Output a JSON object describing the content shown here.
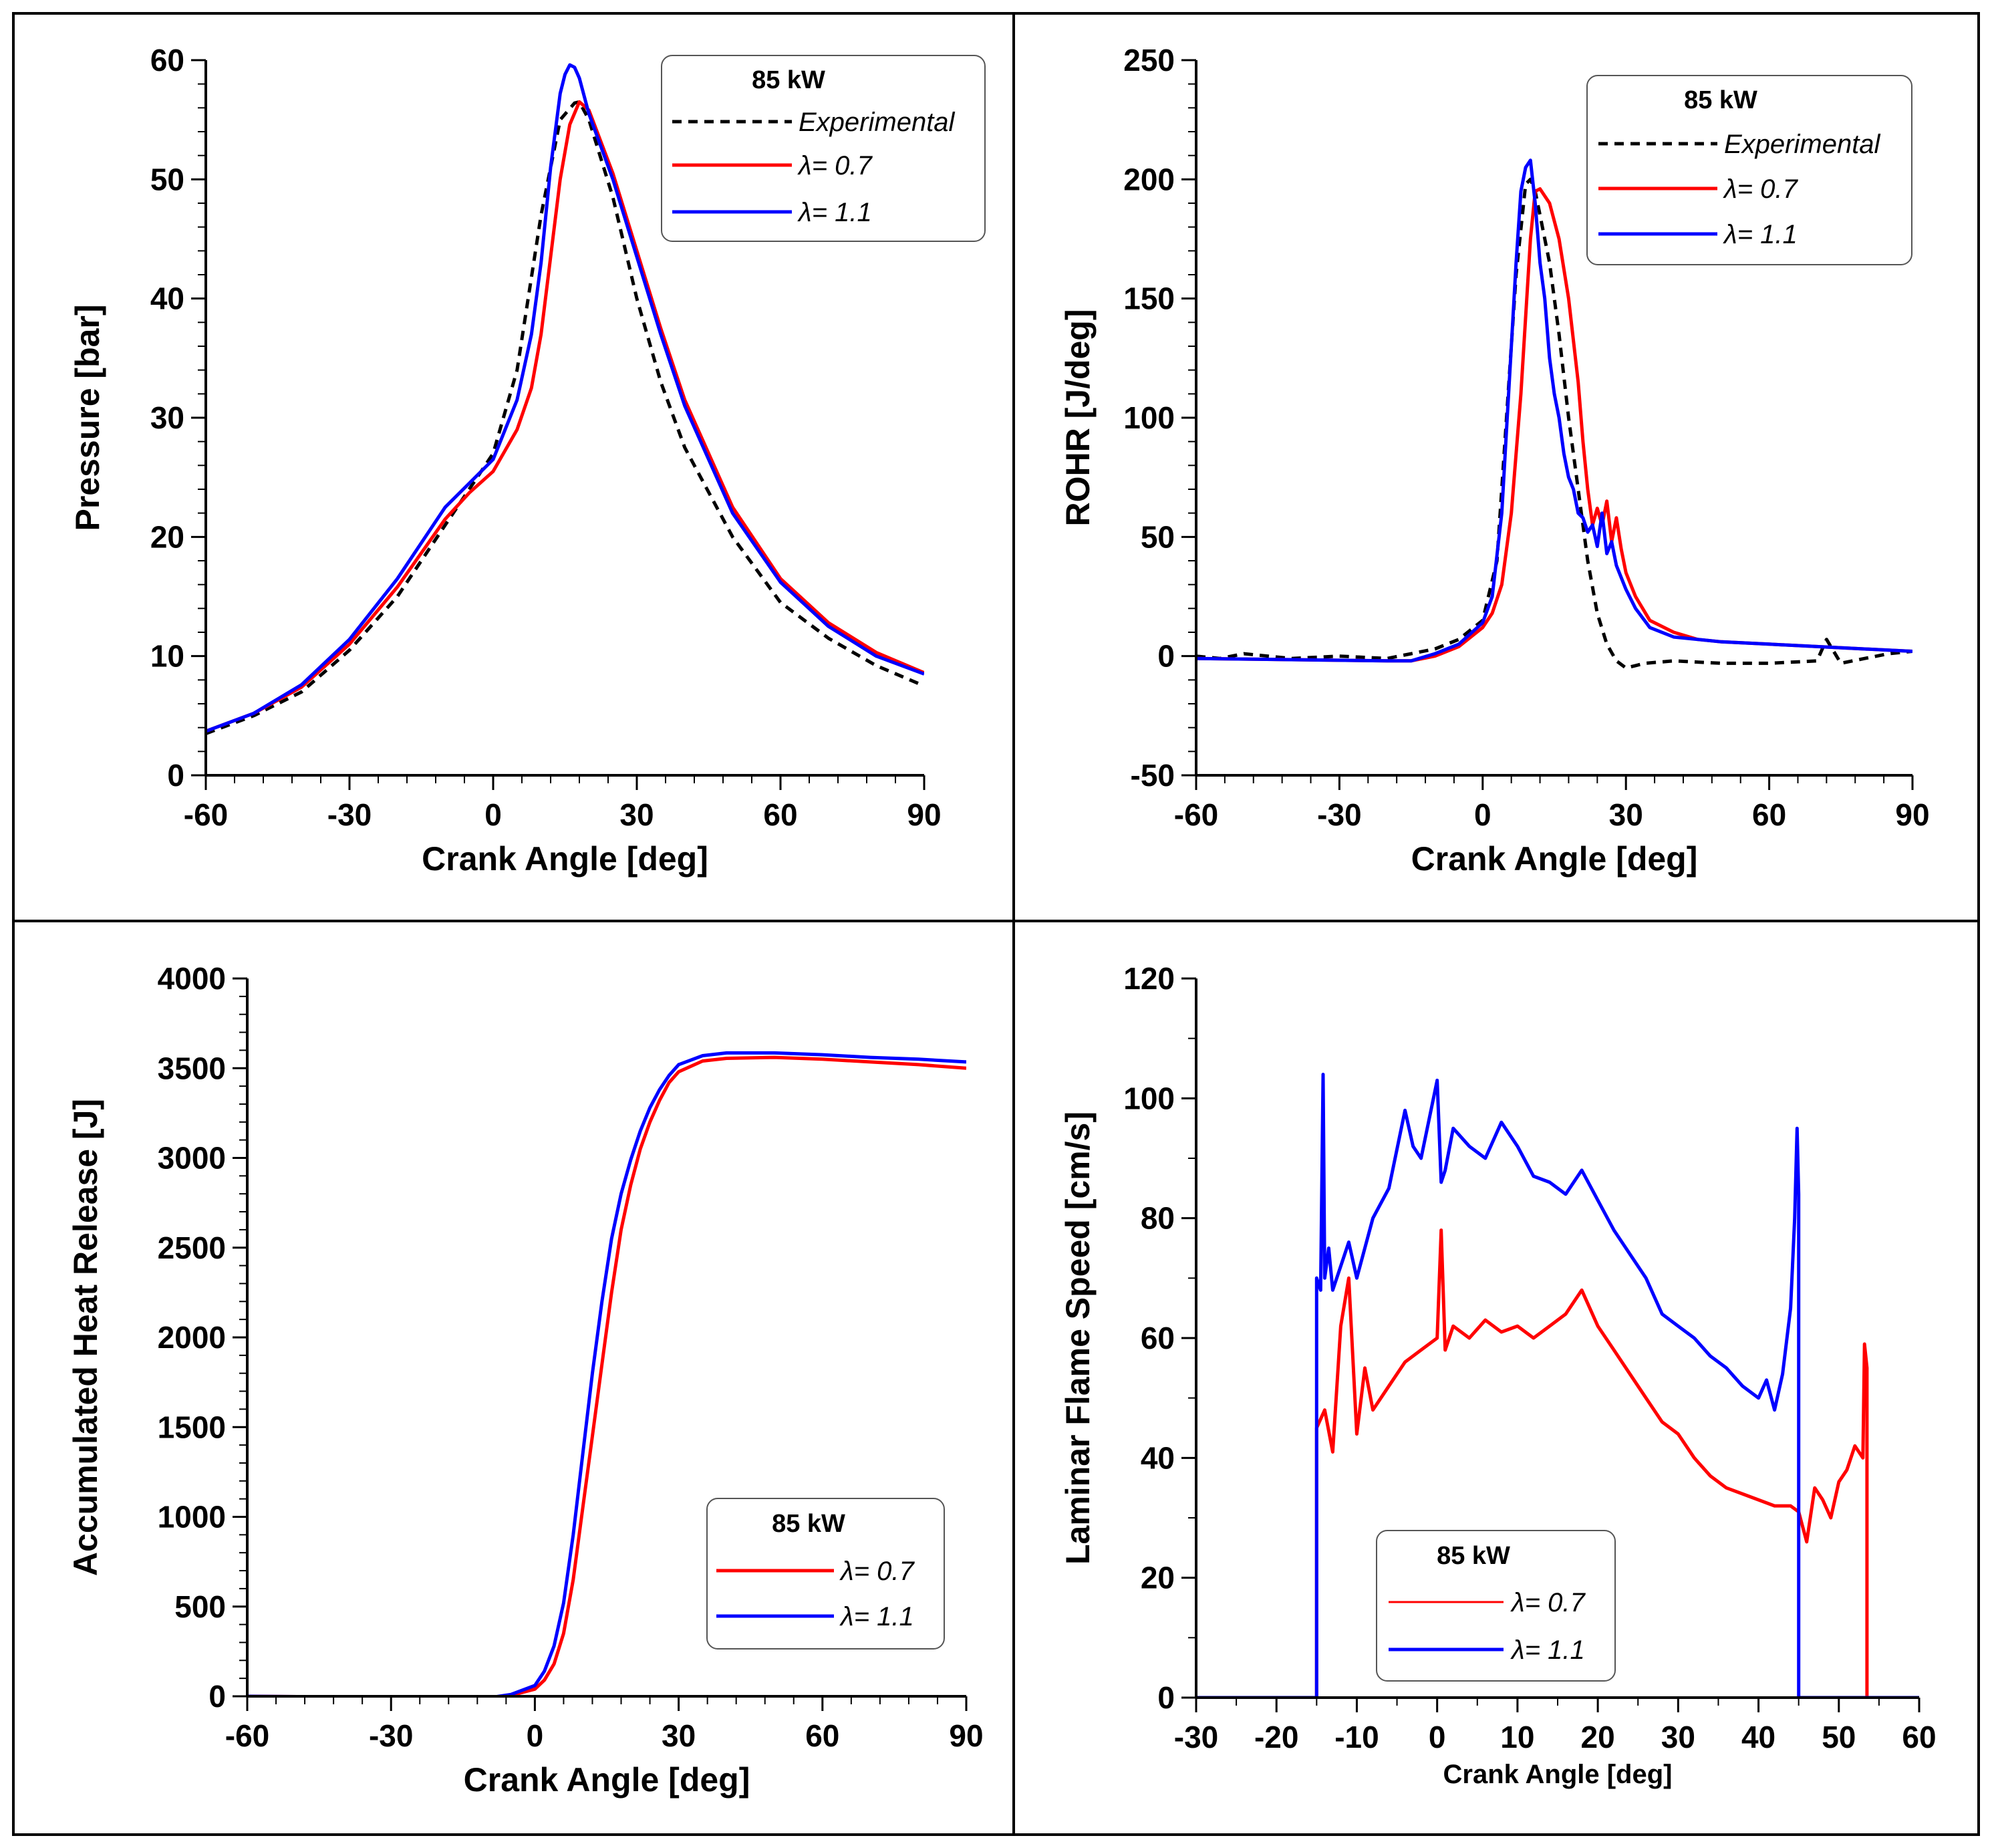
{
  "colors": {
    "experimental": "#000000",
    "lambda_07": "#ff0000",
    "lambda_11": "#0000ff"
  },
  "chart_data": [
    {
      "id": "pressure",
      "type": "line",
      "xlabel": "Crank Angle [deg]",
      "ylabel": "Pressure [bar]",
      "xlim": [
        -60,
        90
      ],
      "ylim": [
        0,
        60
      ],
      "xticks": [
        -60,
        -30,
        0,
        30,
        60,
        90
      ],
      "yticks": [
        0,
        10,
        20,
        30,
        40,
        50,
        60
      ],
      "xminor": 5,
      "yminor": 5,
      "legend": {
        "position": "top-right",
        "title": "85 kW",
        "entries": [
          {
            "key": "experimental",
            "label": "Experimental",
            "style": "dashed"
          },
          {
            "key": "lambda_07",
            "label": "λ= 0.7",
            "style": "solid"
          },
          {
            "key": "lambda_11",
            "label": "λ= 1.1",
            "style": "solid"
          }
        ]
      },
      "series": [
        {
          "key": "experimental",
          "name": "Experimental",
          "style": "dashed",
          "x": [
            -60,
            -50,
            -40,
            -30,
            -20,
            -10,
            -5,
            0,
            5,
            10,
            14,
            17,
            18,
            20,
            25,
            30,
            35,
            40,
            50,
            60,
            70,
            80,
            90
          ],
          "y": [
            3.5,
            5,
            7,
            10.5,
            15,
            21,
            24,
            27,
            34,
            47,
            55,
            56.4,
            56.5,
            55,
            48.5,
            40,
            33,
            27.5,
            20,
            14.5,
            11.5,
            9.2,
            7.5
          ]
        },
        {
          "key": "lambda_07",
          "name": "λ= 0.7",
          "x": [
            -60,
            -50,
            -40,
            -30,
            -20,
            -10,
            -5,
            0,
            5,
            8,
            10,
            12,
            14,
            16,
            18,
            20,
            25,
            30,
            35,
            40,
            50,
            60,
            70,
            80,
            90
          ],
          "y": [
            3.7,
            5.2,
            7.4,
            11,
            15.8,
            21.5,
            23.7,
            25.5,
            29,
            32.5,
            37,
            43.5,
            50,
            54.6,
            56.5,
            55.8,
            50.5,
            44,
            37.5,
            31.5,
            22.5,
            16.5,
            12.8,
            10.3,
            8.6
          ]
        },
        {
          "key": "lambda_11",
          "name": "λ= 1.1",
          "x": [
            -60,
            -50,
            -40,
            -30,
            -20,
            -10,
            -5,
            0,
            5,
            8,
            10,
            12,
            14,
            15,
            16,
            17,
            18,
            20,
            25,
            30,
            35,
            40,
            50,
            60,
            70,
            80,
            90
          ],
          "y": [
            3.7,
            5.2,
            7.6,
            11.4,
            16.5,
            22.5,
            24.5,
            26.5,
            31.5,
            37,
            43,
            51,
            57.2,
            58.8,
            59.6,
            59.4,
            58.5,
            55.5,
            50,
            43.5,
            37,
            31,
            22,
            16.2,
            12.5,
            10,
            8.5
          ]
        }
      ]
    },
    {
      "id": "rohr",
      "type": "line",
      "xlabel": "Crank Angle [deg]",
      "ylabel": "ROHR [J/deg]",
      "xlim": [
        -60,
        90
      ],
      "ylim": [
        -50,
        250
      ],
      "xticks": [
        -60,
        -30,
        0,
        30,
        60,
        90
      ],
      "yticks": [
        -50,
        0,
        50,
        100,
        150,
        200,
        250
      ],
      "xminor": 5,
      "yminor": 5,
      "legend": {
        "position": "top-right",
        "title": "85 kW",
        "entries": [
          {
            "key": "experimental",
            "label": "Experimental",
            "style": "dashed"
          },
          {
            "key": "lambda_07",
            "label": "λ= 0.7",
            "style": "solid"
          },
          {
            "key": "lambda_11",
            "label": "λ= 1.1",
            "style": "solid"
          }
        ]
      },
      "series": [
        {
          "key": "experimental",
          "name": "Experimental",
          "style": "dashed",
          "x": [
            -60,
            -55,
            -50,
            -40,
            -30,
            -20,
            -10,
            -5,
            0,
            3,
            5,
            7,
            9,
            10,
            11,
            12,
            14,
            16,
            18,
            20,
            22,
            24,
            26,
            28,
            30,
            32,
            34,
            40,
            50,
            60,
            70,
            72,
            75,
            80,
            85,
            90
          ],
          "y": [
            0,
            -1,
            1,
            -1,
            0,
            -1,
            3,
            7,
            15,
            40,
            100,
            160,
            198,
            200,
            195,
            185,
            165,
            135,
            100,
            70,
            40,
            18,
            5,
            -2,
            -5,
            -4,
            -3,
            -2,
            -3,
            -3,
            -2,
            7,
            -3,
            -1,
            1,
            2
          ]
        },
        {
          "key": "lambda_07",
          "name": "λ= 0.7",
          "x": [
            -60,
            -40,
            -20,
            -15,
            -10,
            -5,
            0,
            2,
            4,
            6,
            8,
            10,
            11,
            12,
            14,
            16,
            18,
            20,
            21,
            22,
            23,
            24,
            25,
            26,
            27,
            28,
            29,
            30,
            32,
            35,
            40,
            45,
            50,
            60,
            70,
            80,
            90
          ],
          "y": [
            -1,
            -1.5,
            -2,
            -2,
            0,
            4,
            12,
            18,
            30,
            60,
            110,
            175,
            195,
            196,
            190,
            175,
            150,
            115,
            90,
            70,
            55,
            62,
            55,
            65,
            48,
            58,
            45,
            35,
            25,
            15,
            10,
            7,
            6,
            5,
            4,
            3,
            2
          ]
        },
        {
          "key": "lambda_11",
          "name": "λ= 1.1",
          "x": [
            -60,
            -40,
            -20,
            -15,
            -10,
            -5,
            0,
            2,
            4,
            5,
            6,
            7,
            8,
            9,
            10,
            11,
            12,
            13,
            14,
            15,
            16,
            17,
            18,
            19,
            20,
            21,
            22,
            23,
            24,
            25,
            26,
            27,
            28,
            30,
            32,
            35,
            40,
            50,
            60,
            70,
            80,
            90
          ],
          "y": [
            -1,
            -1.5,
            -2,
            -2,
            1,
            5,
            14,
            25,
            60,
            95,
            130,
            165,
            195,
            205,
            208,
            190,
            165,
            150,
            125,
            110,
            100,
            85,
            75,
            70,
            60,
            58,
            52,
            55,
            46,
            60,
            43,
            48,
            38,
            28,
            20,
            12,
            8,
            6,
            5,
            4,
            3,
            2
          ]
        }
      ]
    },
    {
      "id": "heat-release",
      "type": "line",
      "xlabel": "Crank Angle [deg]",
      "ylabel": "Accumulated Heat Release [J]",
      "xlim": [
        -60,
        90
      ],
      "ylim": [
        0,
        4000
      ],
      "xticks": [
        -60,
        -30,
        0,
        30,
        60,
        90
      ],
      "yticks": [
        0,
        500,
        1000,
        1500,
        2000,
        2500,
        3000,
        3500,
        4000
      ],
      "xminor": 5,
      "yminor": 5,
      "legend": {
        "position": "bottom-right",
        "title": "85 kW",
        "entries": [
          {
            "key": "lambda_07",
            "label": "λ= 0.7",
            "style": "solid"
          },
          {
            "key": "lambda_11",
            "label": "λ= 1.1",
            "style": "solid"
          }
        ]
      },
      "series": [
        {
          "key": "lambda_07",
          "name": "λ= 0.7",
          "x": [
            -60,
            -30,
            -10,
            -5,
            0,
            2,
            4,
            6,
            8,
            10,
            12,
            14,
            16,
            18,
            20,
            22,
            24,
            26,
            28,
            30,
            35,
            40,
            50,
            60,
            70,
            80,
            90
          ],
          "y": [
            0,
            -5,
            -10,
            5,
            40,
            90,
            180,
            350,
            650,
            1050,
            1450,
            1850,
            2250,
            2600,
            2850,
            3050,
            3200,
            3320,
            3420,
            3480,
            3540,
            3555,
            3560,
            3550,
            3535,
            3520,
            3500
          ]
        },
        {
          "key": "lambda_11",
          "name": "λ= 1.1",
          "x": [
            -60,
            -30,
            -10,
            -5,
            0,
            2,
            4,
            6,
            8,
            10,
            12,
            14,
            16,
            18,
            20,
            22,
            24,
            26,
            28,
            30,
            35,
            40,
            50,
            60,
            70,
            80,
            90
          ],
          "y": [
            0,
            -5,
            -10,
            10,
            60,
            140,
            280,
            520,
            900,
            1350,
            1800,
            2200,
            2550,
            2800,
            2990,
            3150,
            3280,
            3380,
            3460,
            3520,
            3570,
            3585,
            3585,
            3575,
            3560,
            3550,
            3535
          ]
        }
      ]
    },
    {
      "id": "flame-speed",
      "type": "line",
      "xlabel": "Crank Angle [deg]",
      "ylabel": "Laminar Flame Speed [cm/s]",
      "xlim": [
        -30,
        60
      ],
      "ylim": [
        0,
        120
      ],
      "xticks": [
        -30,
        -20,
        -10,
        0,
        10,
        20,
        30,
        40,
        50,
        60
      ],
      "yticks": [
        0,
        20,
        40,
        60,
        80,
        100,
        120
      ],
      "xminor": 2,
      "yminor": 2,
      "legend": {
        "position": "bottom-left",
        "title": "85 kW",
        "entries": [
          {
            "key": "lambda_07",
            "label": "λ= 0.7",
            "style": "solid"
          },
          {
            "key": "lambda_11",
            "label": "λ= 1.1",
            "style": "solid"
          }
        ]
      },
      "series": [
        {
          "key": "lambda_07",
          "name": "λ= 0.7",
          "x": [
            -30,
            -15,
            -15,
            -14,
            -13,
            -12,
            -11,
            -10,
            -9,
            -8,
            -6,
            -4,
            -2,
            0,
            0.5,
            1,
            2,
            4,
            6,
            8,
            10,
            12,
            14,
            16,
            18,
            20,
            22,
            24,
            26,
            28,
            30,
            32,
            34,
            36,
            38,
            40,
            42,
            44,
            45,
            46,
            47,
            48,
            49,
            50,
            51,
            52,
            53,
            53.2,
            53.5,
            53.5,
            54,
            60
          ],
          "y": [
            0,
            0,
            45,
            48,
            41,
            62,
            70,
            44,
            55,
            48,
            52,
            56,
            58,
            60,
            78,
            58,
            62,
            60,
            63,
            61,
            62,
            60,
            62,
            64,
            68,
            62,
            58,
            54,
            50,
            46,
            44,
            40,
            37,
            35,
            34,
            33,
            32,
            32,
            31,
            26,
            35,
            33,
            30,
            36,
            38,
            42,
            40,
            59,
            55,
            0,
            0,
            0
          ]
        },
        {
          "key": "lambda_11",
          "name": "λ= 1.1",
          "x": [
            -30,
            -15,
            -15,
            -14.5,
            -14.2,
            -14,
            -13.5,
            -13,
            -12,
            -11,
            -10,
            -8,
            -6,
            -4,
            -3,
            -2,
            0,
            0.5,
            1,
            2,
            4,
            6,
            8,
            10,
            12,
            14,
            16,
            18,
            20,
            22,
            24,
            26,
            28,
            30,
            32,
            34,
            36,
            38,
            40,
            41,
            42,
            43,
            44,
            44.5,
            44.8,
            45,
            45,
            60
          ],
          "y": [
            0,
            0,
            70,
            68,
            104,
            70,
            75,
            68,
            72,
            76,
            70,
            80,
            85,
            98,
            92,
            90,
            103,
            86,
            88,
            95,
            92,
            90,
            96,
            92,
            87,
            86,
            84,
            88,
            83,
            78,
            74,
            70,
            64,
            62,
            60,
            57,
            55,
            52,
            50,
            53,
            48,
            54,
            65,
            80,
            95,
            84,
            0,
            0
          ]
        }
      ]
    }
  ]
}
